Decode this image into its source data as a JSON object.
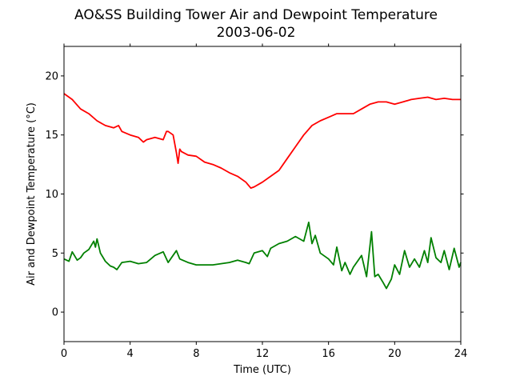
{
  "chart_data": {
    "type": "line",
    "title": "AO&SS Building Tower Air and Dewpoint Temperature",
    "subtitle": "2003-06-02",
    "xlabel": "Time (UTC)",
    "ylabel": "Air and Dewpoint Temperature (°C)",
    "xlim": [
      0,
      24
    ],
    "ylim": [
      -2.5,
      22.5
    ],
    "xticks": [
      0,
      4,
      8,
      12,
      16,
      20,
      24
    ],
    "yticks": [
      0,
      5,
      10,
      15,
      20
    ],
    "grid": false,
    "legend": "none",
    "series": [
      {
        "color": "#ff0000",
        "x": [
          0,
          0.5,
          1.0,
          1.5,
          2.0,
          2.5,
          3.0,
          3.3,
          3.5,
          4.0,
          4.5,
          4.8,
          5.0,
          5.5,
          6.0,
          6.2,
          6.3,
          6.6,
          6.8,
          6.9,
          7.0,
          7.1,
          7.5,
          8.0,
          8.5,
          9.0,
          9.5,
          10.0,
          10.5,
          11.0,
          11.3,
          11.5,
          12.0,
          12.5,
          13.0,
          13.5,
          14.0,
          14.5,
          15.0,
          15.5,
          16.0,
          16.5,
          17.0,
          17.5,
          18.0,
          18.5,
          19.0,
          19.5,
          20.0,
          20.5,
          21.0,
          21.5,
          22.0,
          22.5,
          23.0,
          23.5,
          24.0
        ],
        "y": [
          18.5,
          18.0,
          17.2,
          16.8,
          16.2,
          15.8,
          15.6,
          15.8,
          15.3,
          15.0,
          14.8,
          14.4,
          14.6,
          14.8,
          14.6,
          15.3,
          15.3,
          15.0,
          13.5,
          12.6,
          13.8,
          13.6,
          13.3,
          13.2,
          12.7,
          12.5,
          12.2,
          11.8,
          11.5,
          11.0,
          10.5,
          10.6,
          11.0,
          11.5,
          12.0,
          13.0,
          14.0,
          15.0,
          15.8,
          16.2,
          16.5,
          16.8,
          16.8,
          16.8,
          17.2,
          17.6,
          17.8,
          17.8,
          17.6,
          17.8,
          18.0,
          18.1,
          18.2,
          18.0,
          18.1,
          18.0,
          18.0
        ]
      },
      {
        "color": "#008000",
        "x": [
          0,
          0.3,
          0.5,
          0.8,
          1.0,
          1.2,
          1.5,
          1.8,
          1.9,
          2.0,
          2.2,
          2.5,
          2.8,
          3.0,
          3.2,
          3.5,
          4.0,
          4.5,
          5.0,
          5.5,
          6.0,
          6.3,
          6.5,
          6.8,
          7.0,
          7.5,
          8.0,
          8.5,
          9.0,
          9.5,
          10.0,
          10.5,
          11.0,
          11.2,
          11.5,
          12.0,
          12.3,
          12.5,
          13.0,
          13.5,
          14.0,
          14.5,
          14.8,
          15.0,
          15.2,
          15.5,
          16.0,
          16.3,
          16.5,
          16.8,
          17.0,
          17.3,
          17.5,
          18.0,
          18.3,
          18.6,
          18.8,
          19.0,
          19.3,
          19.5,
          19.8,
          20.0,
          20.3,
          20.6,
          20.9,
          21.2,
          21.5,
          21.8,
          22.0,
          22.2,
          22.5,
          22.8,
          23.0,
          23.3,
          23.6,
          23.9,
          24.0
        ],
        "y": [
          4.5,
          4.3,
          5.1,
          4.4,
          4.6,
          5.0,
          5.3,
          6.0,
          5.5,
          6.2,
          5.0,
          4.3,
          3.9,
          3.8,
          3.6,
          4.2,
          4.3,
          4.1,
          4.2,
          4.8,
          5.1,
          4.2,
          4.6,
          5.2,
          4.5,
          4.2,
          4.0,
          4.0,
          4.0,
          4.1,
          4.2,
          4.4,
          4.2,
          4.1,
          5.0,
          5.2,
          4.7,
          5.4,
          5.8,
          6.0,
          6.4,
          6.0,
          7.6,
          5.8,
          6.5,
          5.0,
          4.5,
          4.0,
          5.5,
          3.5,
          4.2,
          3.2,
          3.8,
          4.8,
          3.0,
          6.8,
          3.0,
          3.2,
          2.5,
          2.0,
          2.8,
          4.0,
          3.2,
          5.2,
          3.8,
          4.5,
          3.8,
          5.2,
          4.2,
          6.3,
          4.6,
          4.2,
          5.2,
          3.6,
          5.4,
          3.8,
          4.2
        ]
      }
    ]
  }
}
